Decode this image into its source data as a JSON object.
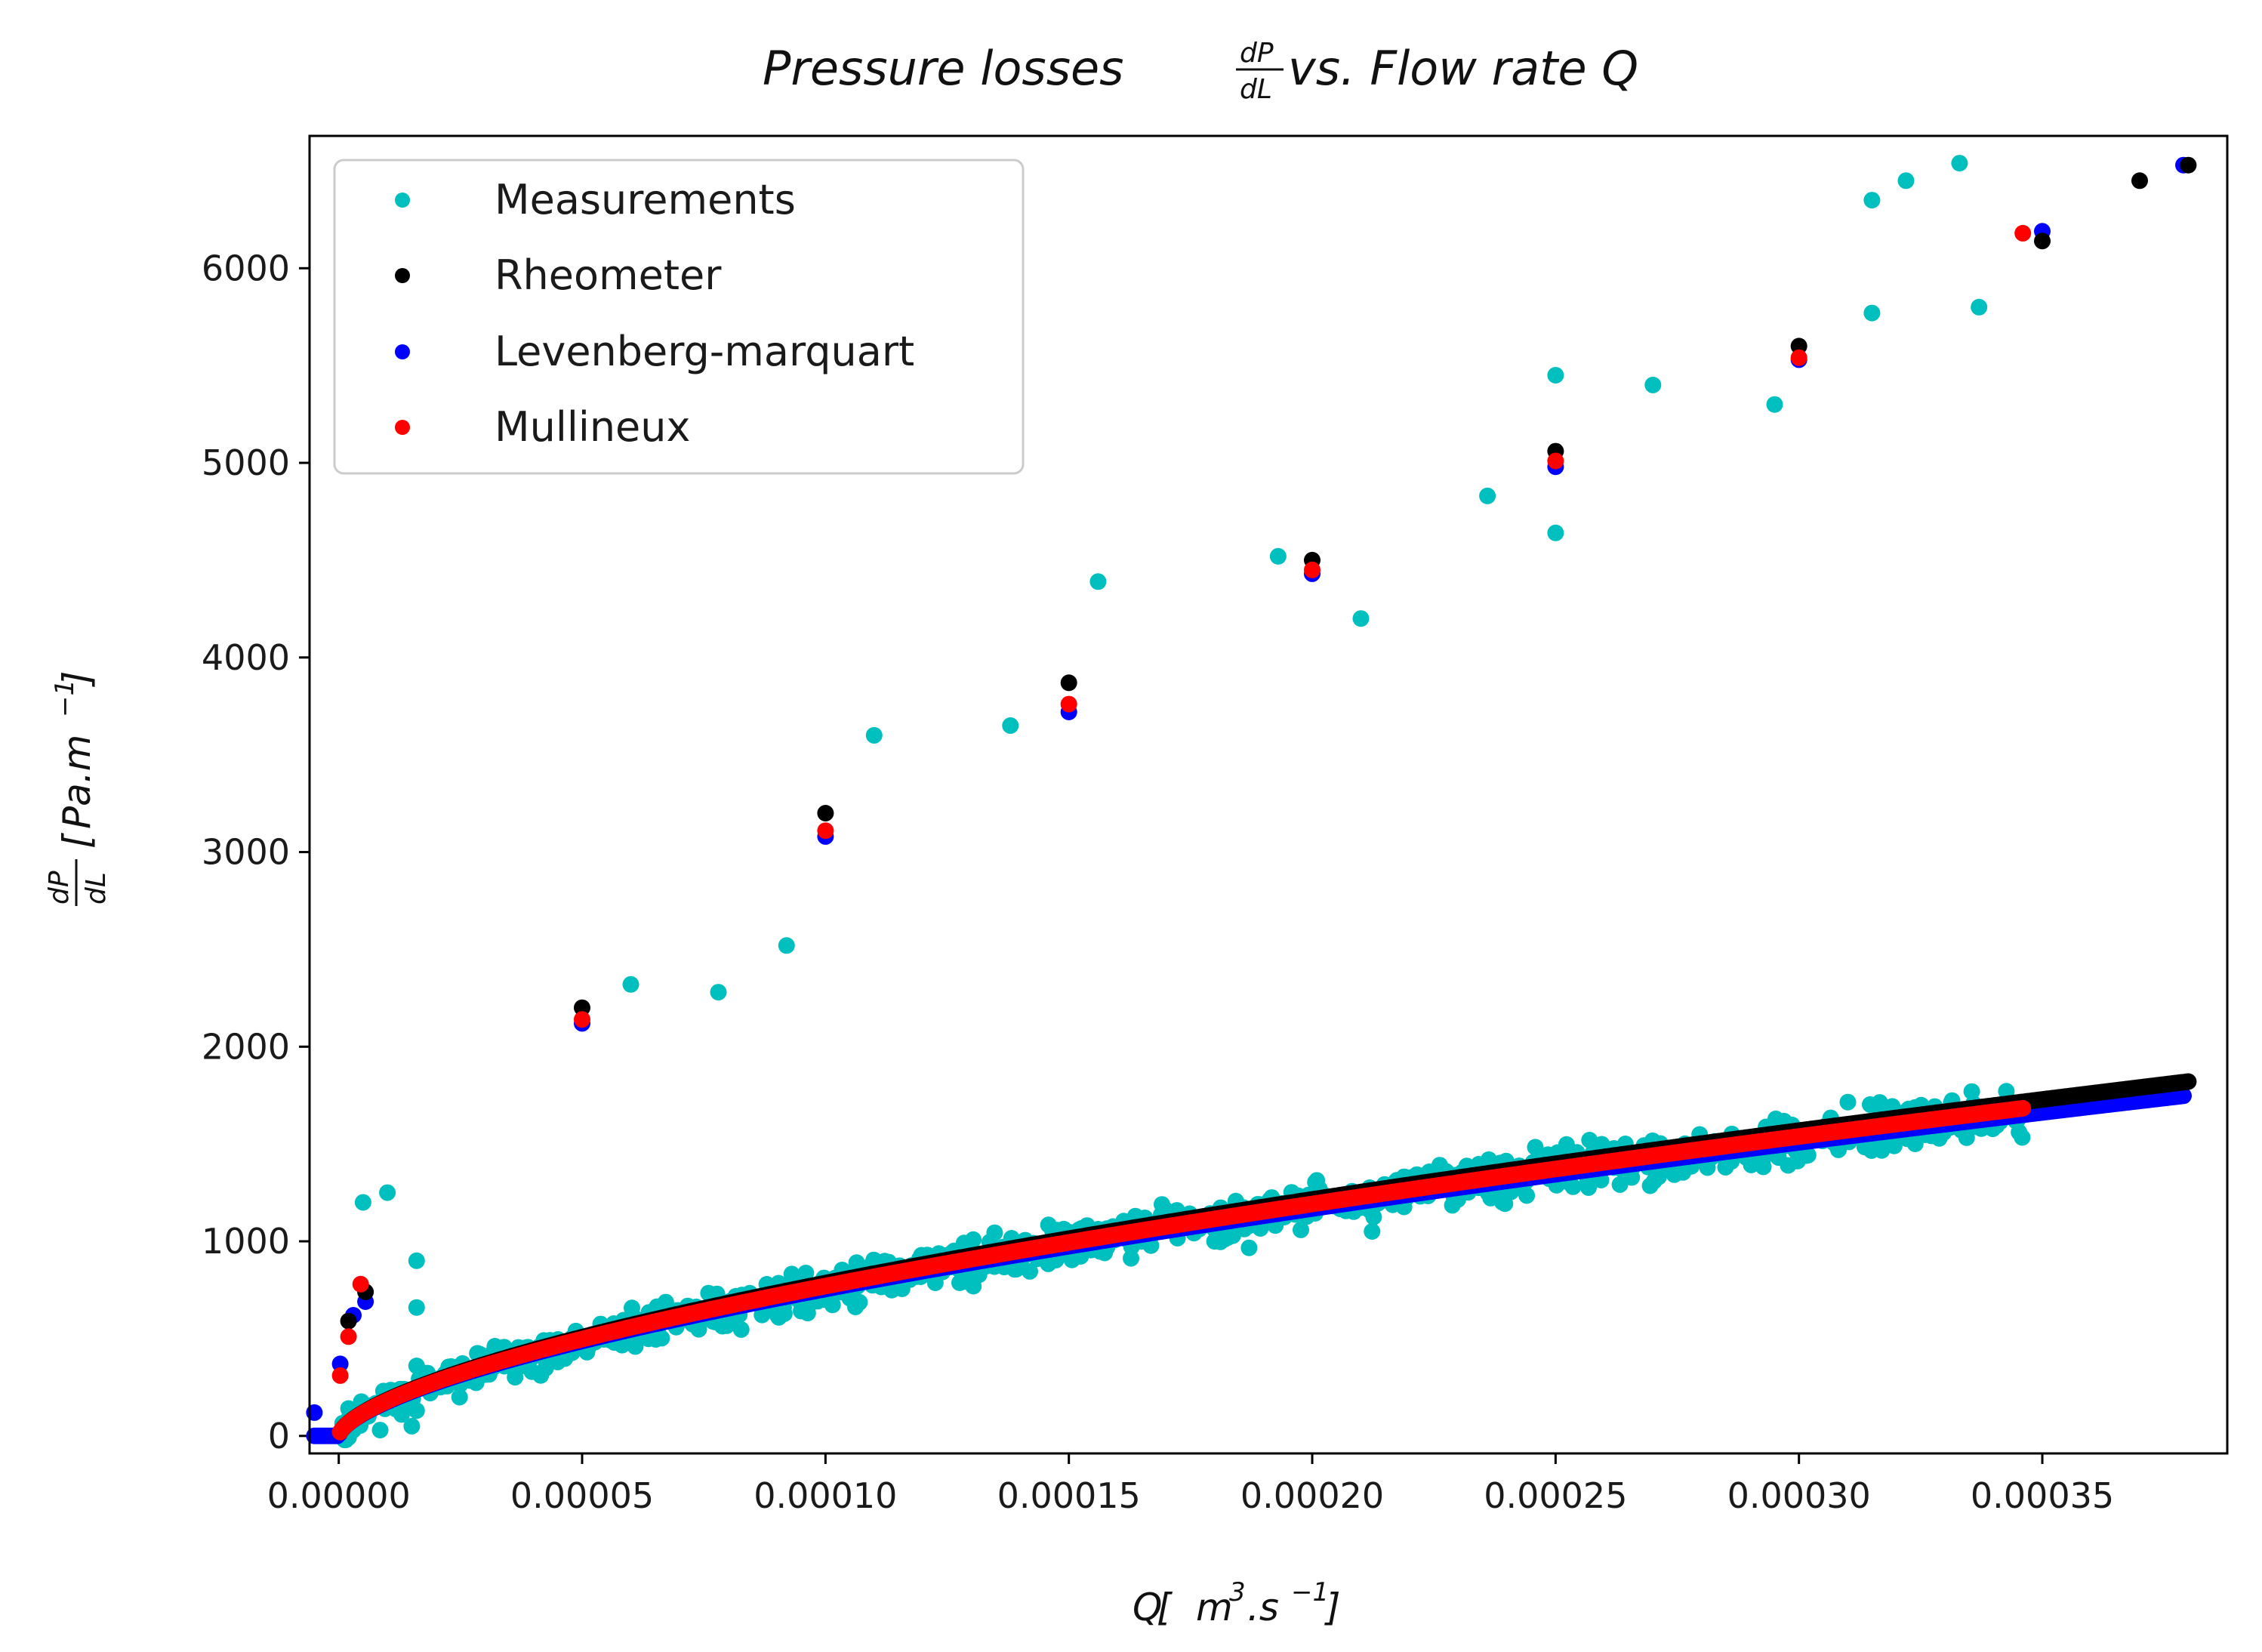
{
  "chart_data": {
    "type": "scatter",
    "title": {
      "prefix": "Pressure losses ",
      "frac_top": "dP",
      "frac_bottom": "dL",
      "suffix": " vs. Flow rate Q"
    },
    "xlabel": {
      "q": "Q",
      "open": " [",
      "m": "m",
      "m_exp": "3",
      "dot_s": ".s",
      "s_exp": "−1",
      "close": "]"
    },
    "ylabel": {
      "frac_top": "dP",
      "frac_bottom": "dL",
      "open": "[",
      "pa": "Pa.m",
      "exp": "−1",
      "close": "]"
    },
    "xlim": [
      -6e-06,
      0.000388
    ],
    "ylim": [
      -90,
      6680
    ],
    "xticks": [
      0.0,
      5e-05,
      0.0001,
      0.00015,
      0.0002,
      0.00025,
      0.0003,
      0.00035
    ],
    "xtick_labels": [
      "0.00000",
      "0.00005",
      "0.00010",
      "0.00015",
      "0.00020",
      "0.00025",
      "0.00030",
      "0.00035"
    ],
    "yticks": [
      0,
      1000,
      2000,
      3000,
      4000,
      5000,
      6000
    ],
    "ytick_labels": [
      "0",
      "1000",
      "2000",
      "3000",
      "4000",
      "5000",
      "6000"
    ],
    "legend_position": "upper-left",
    "series": [
      {
        "name": "Measurements",
        "color": "#00bfbf",
        "model": "power-law fit with scatter",
        "x_range": [
          5e-07,
          0.000346
        ],
        "points": [
          {
            "x": 1e-06,
            "y": 50
          },
          {
            "x": 3e-06,
            "y": 30
          },
          {
            "x": 5e-06,
            "y": 1200
          },
          {
            "x": 8.5e-06,
            "y": 30
          },
          {
            "x": 1.5e-05,
            "y": 50
          },
          {
            "x": 1.6e-05,
            "y": 130
          },
          {
            "x": 1.6e-05,
            "y": 360
          },
          {
            "x": 1.6e-05,
            "y": 660
          },
          {
            "x": 1.6e-05,
            "y": 900
          },
          {
            "x": 1e-05,
            "y": 1250
          },
          {
            "x": 6e-05,
            "y": 2320
          },
          {
            "x": 7.8e-05,
            "y": 2280
          },
          {
            "x": 9.2e-05,
            "y": 2520
          },
          {
            "x": 0.00011,
            "y": 3600
          },
          {
            "x": 0.000138,
            "y": 3650
          },
          {
            "x": 0.000156,
            "y": 4390
          },
          {
            "x": 0.000193,
            "y": 4520
          },
          {
            "x": 0.00021,
            "y": 4200
          },
          {
            "x": 0.000236,
            "y": 4830
          },
          {
            "x": 0.00025,
            "y": 5450
          },
          {
            "x": 0.00025,
            "y": 4640
          },
          {
            "x": 0.00027,
            "y": 5400
          },
          {
            "x": 0.000295,
            "y": 5300
          },
          {
            "x": 0.000315,
            "y": 5770
          },
          {
            "x": 0.000315,
            "y": 6350
          },
          {
            "x": 0.000322,
            "y": 6450
          },
          {
            "x": 0.000333,
            "y": 6540
          },
          {
            "x": 0.000337,
            "y": 5800
          }
        ]
      },
      {
        "name": "Rheometer",
        "color": "#000000",
        "model": "dPdL = 2.6e5 * Q^0.63 (Q in m3/s)",
        "x_range": [
          1e-06,
          0.00038
        ],
        "points": [
          {
            "x": 2e-06,
            "y": 590
          },
          {
            "x": 5.5e-06,
            "y": 740
          },
          {
            "x": 5e-05,
            "y": 2200
          },
          {
            "x": 0.0001,
            "y": 3200
          },
          {
            "x": 0.00015,
            "y": 3870
          },
          {
            "x": 0.0002,
            "y": 4500
          },
          {
            "x": 0.00025,
            "y": 5060
          },
          {
            "x": 0.0003,
            "y": 5600
          },
          {
            "x": 0.00035,
            "y": 6140
          },
          {
            "x": 0.00037,
            "y": 6450
          },
          {
            "x": 0.00038,
            "y": 6530
          }
        ]
      },
      {
        "name": "Levenberg-marquart",
        "color": "#0000ff",
        "model": "dPdL = 2.5e5 * Q^0.63 (Q in m3/s)",
        "x_range": [
          -5e-06,
          0.000379
        ],
        "points": [
          {
            "x": -5e-06,
            "y": 120
          },
          {
            "x": 3e-07,
            "y": 370
          },
          {
            "x": 3e-06,
            "y": 620
          },
          {
            "x": 5.5e-06,
            "y": 690
          },
          {
            "x": 5e-05,
            "y": 2120
          },
          {
            "x": 0.0001,
            "y": 3080
          },
          {
            "x": 0.00015,
            "y": 3720
          },
          {
            "x": 0.0002,
            "y": 4430
          },
          {
            "x": 0.00025,
            "y": 4980
          },
          {
            "x": 0.0003,
            "y": 5530
          },
          {
            "x": 0.00035,
            "y": 6190
          },
          {
            "x": 0.000379,
            "y": 6530
          }
        ]
      },
      {
        "name": "Mullineux",
        "color": "#ff0000",
        "model": "dPdL = 2.55e5 * Q^0.63 (Q in m3/s)",
        "x_range": [
          3e-07,
          0.000346
        ],
        "points": [
          {
            "x": 3e-07,
            "y": 310
          },
          {
            "x": 2e-06,
            "y": 510
          },
          {
            "x": 4.5e-06,
            "y": 780
          },
          {
            "x": 5e-05,
            "y": 2140
          },
          {
            "x": 0.0001,
            "y": 3110
          },
          {
            "x": 0.00015,
            "y": 3760
          },
          {
            "x": 0.0002,
            "y": 4450
          },
          {
            "x": 0.00025,
            "y": 5010
          },
          {
            "x": 0.0003,
            "y": 5540
          },
          {
            "x": 0.000346,
            "y": 6180
          }
        ]
      }
    ]
  }
}
